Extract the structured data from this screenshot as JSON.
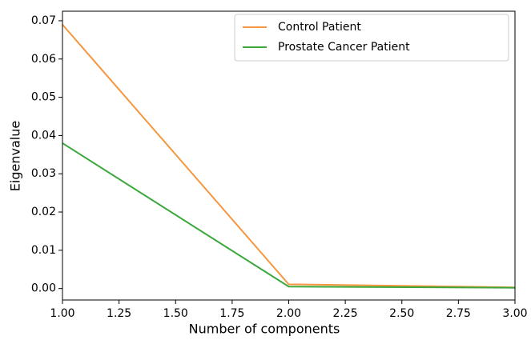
{
  "chart_data": {
    "type": "line",
    "xlabel": "Number of components",
    "ylabel": "Eigenvalue",
    "x": [
      1,
      2,
      3
    ],
    "series": [
      {
        "name": "Control Patient",
        "color": "#f5973f",
        "values": [
          0.069,
          0.0011,
          0.0003
        ]
      },
      {
        "name": "Prostate Cancer Patient",
        "color": "#3aa83a",
        "values": [
          0.038,
          0.0005,
          0.0002
        ]
      }
    ],
    "xlim": [
      1,
      3
    ],
    "xticks": [
      {
        "value": 1,
        "label": "1.00"
      },
      {
        "value": 1.25,
        "label": "1.25"
      },
      {
        "value": 1.5,
        "label": "1.50"
      },
      {
        "value": 1.75,
        "label": "1.75"
      },
      {
        "value": 2,
        "label": "2.00"
      },
      {
        "value": 2.25,
        "label": "2.25"
      },
      {
        "value": 2.5,
        "label": "2.50"
      },
      {
        "value": 2.75,
        "label": "2.75"
      },
      {
        "value": 3,
        "label": "3.00"
      }
    ],
    "ylim": [
      -0.003,
      0.0725
    ],
    "yticks": [
      {
        "value": 0,
        "label": "0.00"
      },
      0.01,
      0.02,
      0.03,
      0.04,
      0.05,
      0.06,
      0.07
    ],
    "legend": "upper right"
  }
}
